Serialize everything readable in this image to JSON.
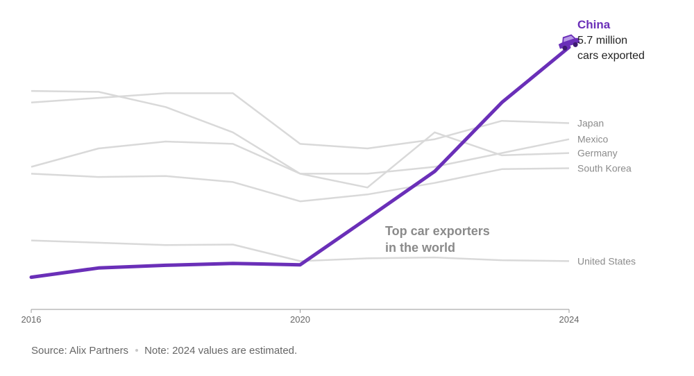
{
  "chart_data": {
    "type": "line",
    "title": "Top car exporters in the world",
    "x": [
      2016,
      2017,
      2018,
      2019,
      2020,
      2021,
      2022,
      2023,
      2024
    ],
    "x_ticks": [
      "2016",
      "2020",
      "2024"
    ],
    "ylim": [
      0,
      6.2
    ],
    "highlight": "China",
    "series": [
      {
        "name": "Japan",
        "label": "Japan",
        "values": [
          4.5,
          4.6,
          4.7,
          4.7,
          3.6,
          3.5,
          3.7,
          4.1,
          4.05
        ]
      },
      {
        "name": "Mexico",
        "label": "Mexico",
        "values": [
          3.1,
          3.5,
          3.65,
          3.6,
          2.95,
          2.95,
          3.1,
          3.4,
          3.7
        ]
      },
      {
        "name": "Germany",
        "label": "Germany",
        "values": [
          4.75,
          4.73,
          4.4,
          3.85,
          2.95,
          2.65,
          3.85,
          3.35,
          3.4
        ]
      },
      {
        "name": "South Korea",
        "label": "South Korea",
        "values": [
          2.95,
          2.88,
          2.9,
          2.77,
          2.35,
          2.5,
          2.75,
          3.05,
          3.07
        ]
      },
      {
        "name": "United States",
        "label": "United States",
        "values": [
          1.5,
          1.45,
          1.4,
          1.41,
          1.05,
          1.11,
          1.13,
          1.07,
          1.05
        ]
      },
      {
        "name": "China",
        "label": "China",
        "values": [
          0.7,
          0.9,
          0.96,
          1.0,
          0.97,
          1.98,
          3.0,
          4.5,
          5.7
        ]
      }
    ],
    "highlight_label": {
      "name": "China",
      "line1": "5.7 million",
      "line2": "cars exported"
    },
    "annotation": [
      "Top car exporters",
      "in the world"
    ],
    "colors": {
      "highlight": "#6a2fb8",
      "other": "#d9d9d9"
    }
  },
  "footer": {
    "source": "Source: Alix Partners",
    "note": "Note: 2024 values are estimated."
  }
}
